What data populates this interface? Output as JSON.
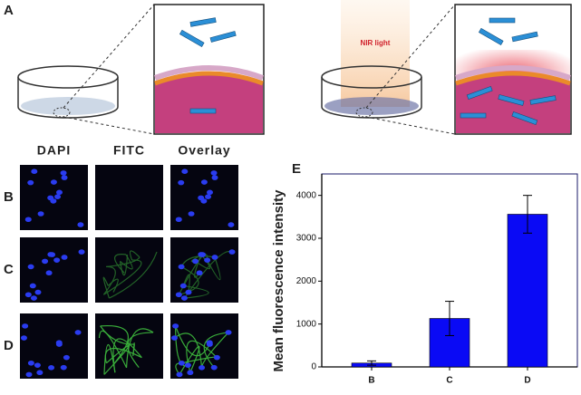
{
  "figure": {
    "panel_a_label": "A",
    "nir_label": "NIR light",
    "row_labels": [
      "B",
      "C",
      "D"
    ],
    "column_labels": [
      "DAPI",
      "FITC",
      "Overlay"
    ],
    "panel_e_label": "E"
  },
  "chart_data": {
    "type": "bar",
    "y_label": "Mean fluorescence intensity",
    "categories": [
      "B",
      "C",
      "D"
    ],
    "values": [
      90,
      1130,
      3560
    ],
    "errors": [
      50,
      400,
      440
    ],
    "color": "#0a0af5",
    "ylim": [
      0,
      4500
    ],
    "yticks": [
      0,
      1000,
      2000,
      3000,
      4000
    ]
  }
}
